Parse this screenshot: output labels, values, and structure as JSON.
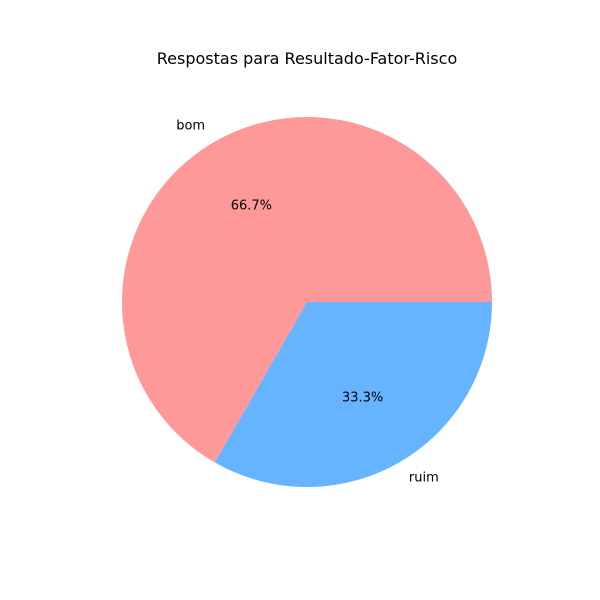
{
  "chart_data": {
    "type": "pie",
    "title": "Respostas para Resultado-Fator-Risco",
    "categories": [
      "bom",
      "ruim"
    ],
    "values": [
      66.7,
      33.3
    ],
    "percent_labels": [
      "66.7%",
      "33.3%"
    ],
    "colors": [
      "#ff9999",
      "#66b3ff"
    ],
    "start_angle_deg": 0,
    "direction": "counterclockwise",
    "legend": "none"
  }
}
